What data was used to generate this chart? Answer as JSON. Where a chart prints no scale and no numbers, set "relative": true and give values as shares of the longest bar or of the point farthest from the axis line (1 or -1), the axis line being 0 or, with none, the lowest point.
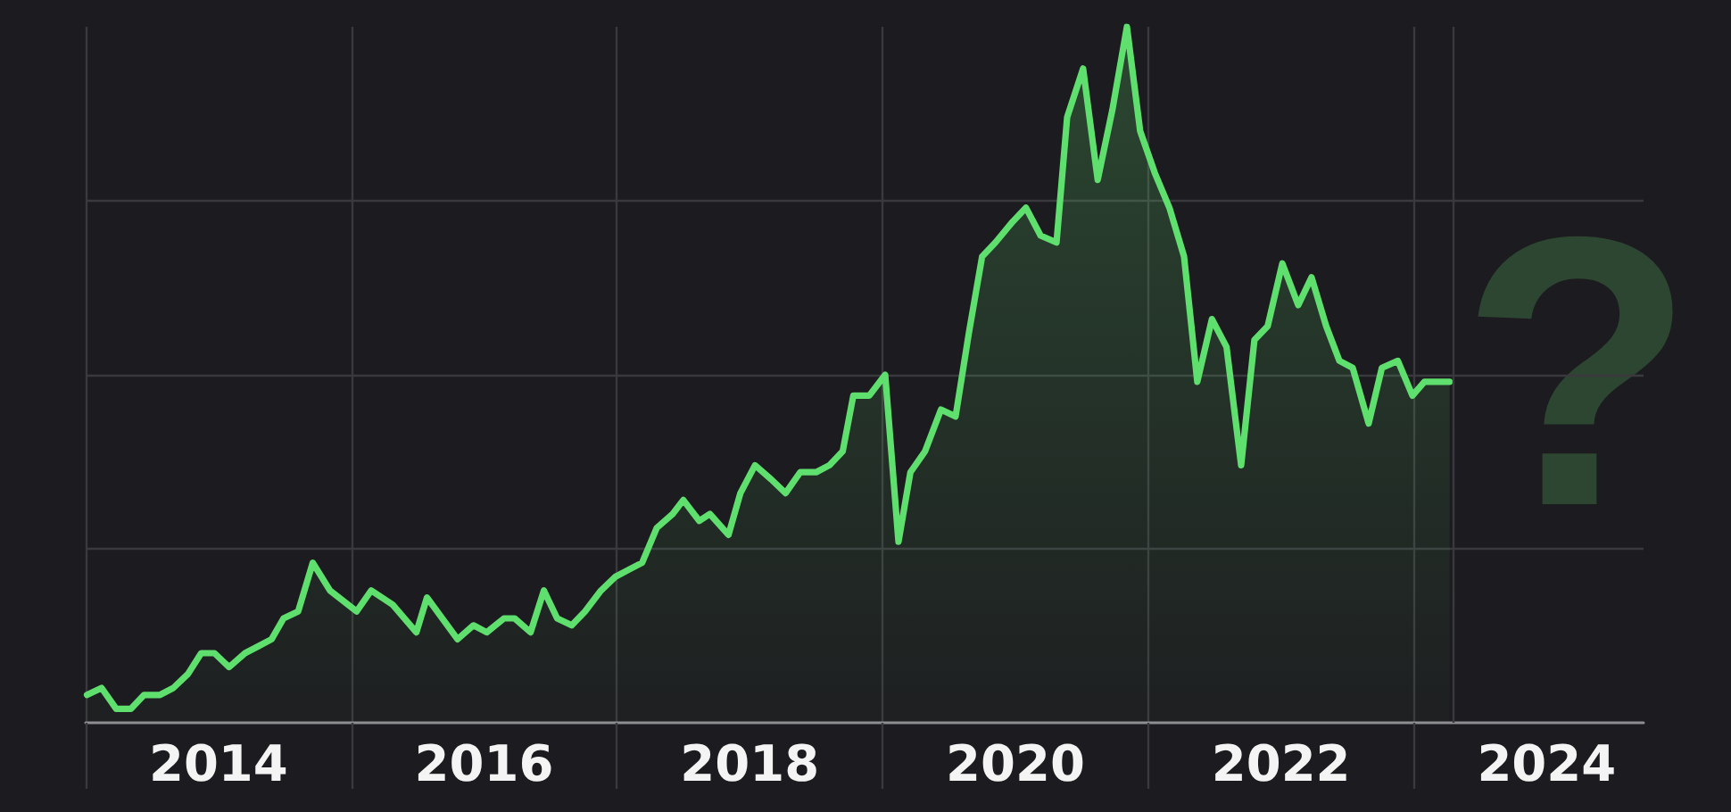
{
  "chart_data": {
    "type": "area",
    "relative": true,
    "x": [
      2013.01,
      2013.12,
      2013.23,
      2013.34,
      2013.44,
      2013.56,
      2013.66,
      2013.77,
      2013.87,
      2013.97,
      2014.08,
      2014.2,
      2014.3,
      2014.4,
      2014.49,
      2014.6,
      2014.71,
      2014.84,
      2015.04,
      2015.15,
      2015.31,
      2015.49,
      2015.57,
      2015.8,
      2015.92,
      2016.02,
      2016.15,
      2016.23,
      2016.35,
      2016.45,
      2016.55,
      2016.66,
      2016.76,
      2016.88,
      2016.99,
      2017.09,
      2017.19,
      2017.3,
      2017.42,
      2017.5,
      2017.62,
      2017.7,
      2017.84,
      2017.93,
      2018.04,
      2018.16,
      2018.27,
      2018.38,
      2018.5,
      2018.6,
      2018.7,
      2018.78,
      2018.9,
      2019.02,
      2019.12,
      2019.21,
      2019.32,
      2019.44,
      2019.55,
      2019.65,
      2019.75,
      2019.85,
      2019.98,
      2020.08,
      2020.19,
      2020.31,
      2020.39,
      2020.51,
      2020.62,
      2020.73,
      2020.84,
      2020.94,
      2021.05,
      2021.16,
      2021.27,
      2021.37,
      2021.48,
      2021.59,
      2021.7,
      2021.8,
      2021.9,
      2022.01,
      2022.13,
      2022.23,
      2022.34,
      2022.44,
      2022.54,
      2022.66,
      2022.76,
      2022.88,
      2022.99,
      2023.08,
      2023.17,
      2023.27
    ],
    "series": [
      {
        "color": "#5fdf6e",
        "values": [
          0.04,
          0.05,
          0.02,
          0.02,
          0.04,
          0.04,
          0.05,
          0.07,
          0.1,
          0.1,
          0.08,
          0.1,
          0.11,
          0.12,
          0.15,
          0.16,
          0.23,
          0.19,
          0.16,
          0.19,
          0.17,
          0.13,
          0.18,
          0.12,
          0.14,
          0.13,
          0.15,
          0.15,
          0.13,
          0.19,
          0.15,
          0.14,
          0.16,
          0.19,
          0.21,
          0.22,
          0.23,
          0.28,
          0.3,
          0.32,
          0.29,
          0.3,
          0.27,
          0.33,
          0.37,
          0.35,
          0.33,
          0.36,
          0.36,
          0.37,
          0.39,
          0.47,
          0.47,
          0.5,
          0.26,
          0.36,
          0.39,
          0.45,
          0.44,
          0.56,
          0.67,
          0.69,
          0.72,
          0.74,
          0.7,
          0.69,
          0.87,
          0.94,
          0.78,
          0.88,
          1,
          0.85,
          0.79,
          0.74,
          0.67,
          0.49,
          0.58,
          0.54,
          0.37,
          0.55,
          0.57,
          0.66,
          0.6,
          0.64,
          0.57,
          0.52,
          0.51,
          0.43,
          0.51,
          0.52,
          0.47,
          0.49,
          0.49,
          0.49
        ]
      }
    ],
    "xlim": [
      2013,
      2024.73
    ],
    "xticks": [
      {
        "value": 2013,
        "label": null
      },
      2014,
      {
        "value": 2015,
        "label": null
      },
      2016,
      {
        "value": 2017,
        "label": null
      },
      2018,
      {
        "value": 2019,
        "label": null
      },
      2020,
      {
        "value": 2021,
        "label": null
      },
      2022,
      {
        "value": 2023,
        "label": null
      },
      2024
    ],
    "tick_labels": "x",
    "grid": true,
    "marker": "none",
    "line_style": "solid",
    "ref_lines": [
      {
        "axis": "x",
        "value": 2023.3,
        "color": "#3a393e"
      }
    ],
    "annotations": [
      "?"
    ]
  }
}
